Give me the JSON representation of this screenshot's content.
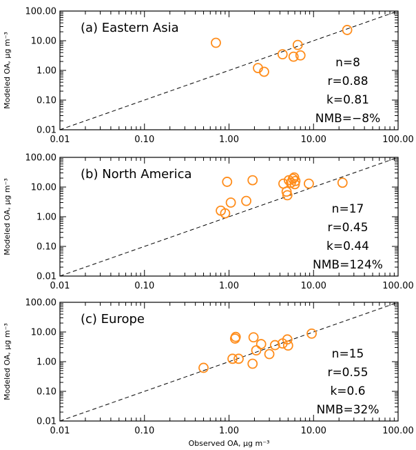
{
  "chart_data": [
    {
      "type": "scatter",
      "panel_title": "(a) Eastern Asia",
      "xlabel": "",
      "ylabel": "Modeled OA, µg m⁻³",
      "x_scale": "log",
      "y_scale": "log",
      "xlim": [
        0.01,
        100
      ],
      "ylim": [
        0.01,
        100
      ],
      "x_tick_labels": [
        "0.01",
        "0.10",
        "1.00",
        "10.00",
        "100.00"
      ],
      "y_tick_labels": [
        "0.01",
        "0.10",
        "1.00",
        "10.00",
        "100.00"
      ],
      "reference_line": "1:1 dashed",
      "marker_color": "#ff8c1a",
      "points": [
        {
          "x": 0.7,
          "y": 8.5
        },
        {
          "x": 2.2,
          "y": 1.2
        },
        {
          "x": 2.6,
          "y": 0.9
        },
        {
          "x": 4.3,
          "y": 3.5
        },
        {
          "x": 5.8,
          "y": 2.9
        },
        {
          "x": 6.5,
          "y": 7.2
        },
        {
          "x": 7.0,
          "y": 3.2
        },
        {
          "x": 25.0,
          "y": 23.0
        }
      ],
      "stats": [
        "n=8",
        "r=0.88",
        "k=0.81",
        "NMB=−8%"
      ]
    },
    {
      "type": "scatter",
      "panel_title": "(b) North America",
      "xlabel": "",
      "ylabel": "Modeled OA, µg m⁻³",
      "x_scale": "log",
      "y_scale": "log",
      "xlim": [
        0.01,
        100
      ],
      "ylim": [
        0.01,
        100
      ],
      "x_tick_labels": [
        "0.01",
        "0.10",
        "1.00",
        "10.00",
        "100.00"
      ],
      "y_tick_labels": [
        "0.01",
        "0.10",
        "1.00",
        "10.00",
        "100.00"
      ],
      "reference_line": "1:1 dashed",
      "marker_color": "#ff8c1a",
      "points": [
        {
          "x": 0.8,
          "y": 1.6
        },
        {
          "x": 0.9,
          "y": 1.3
        },
        {
          "x": 0.95,
          "y": 15.0
        },
        {
          "x": 1.05,
          "y": 3.0
        },
        {
          "x": 1.6,
          "y": 3.4
        },
        {
          "x": 1.9,
          "y": 17.0
        },
        {
          "x": 4.4,
          "y": 13.0
        },
        {
          "x": 4.8,
          "y": 7.0
        },
        {
          "x": 4.9,
          "y": 5.3
        },
        {
          "x": 5.1,
          "y": 17.0
        },
        {
          "x": 5.4,
          "y": 14.0
        },
        {
          "x": 5.7,
          "y": 19.0
        },
        {
          "x": 5.9,
          "y": 21.0
        },
        {
          "x": 6.0,
          "y": 12.5
        },
        {
          "x": 6.1,
          "y": 16.0
        },
        {
          "x": 8.8,
          "y": 13.0
        },
        {
          "x": 22.0,
          "y": 14.0
        }
      ],
      "stats": [
        "n=17",
        "r=0.45",
        "k=0.44",
        "NMB=124%"
      ]
    },
    {
      "type": "scatter",
      "panel_title": "(c) Europe",
      "xlabel": "Observed OA, µg m⁻³",
      "ylabel": "Modeled OA, µg m⁻³",
      "x_scale": "log",
      "y_scale": "log",
      "xlim": [
        0.01,
        100
      ],
      "ylim": [
        0.01,
        100
      ],
      "x_tick_labels": [
        "0.01",
        "0.10",
        "1.00",
        "10.00",
        "100.00"
      ],
      "y_tick_labels": [
        "0.01",
        "0.10",
        "1.00",
        "10.00",
        "100.00"
      ],
      "reference_line": "1:1 dashed",
      "marker_color": "#ff8c1a",
      "points": [
        {
          "x": 0.5,
          "y": 0.62
        },
        {
          "x": 1.1,
          "y": 1.25
        },
        {
          "x": 1.18,
          "y": 6.0
        },
        {
          "x": 1.2,
          "y": 6.8
        },
        {
          "x": 1.3,
          "y": 1.25
        },
        {
          "x": 1.9,
          "y": 0.85
        },
        {
          "x": 1.95,
          "y": 6.6
        },
        {
          "x": 2.1,
          "y": 2.4
        },
        {
          "x": 2.4,
          "y": 3.9
        },
        {
          "x": 3.0,
          "y": 1.8
        },
        {
          "x": 3.5,
          "y": 3.6
        },
        {
          "x": 4.3,
          "y": 4.1
        },
        {
          "x": 4.9,
          "y": 5.6
        },
        {
          "x": 5.0,
          "y": 3.5
        },
        {
          "x": 9.5,
          "y": 8.8
        }
      ],
      "stats": [
        "n=15",
        "r=0.55",
        "k=0.6",
        "NMB=32%"
      ]
    }
  ]
}
